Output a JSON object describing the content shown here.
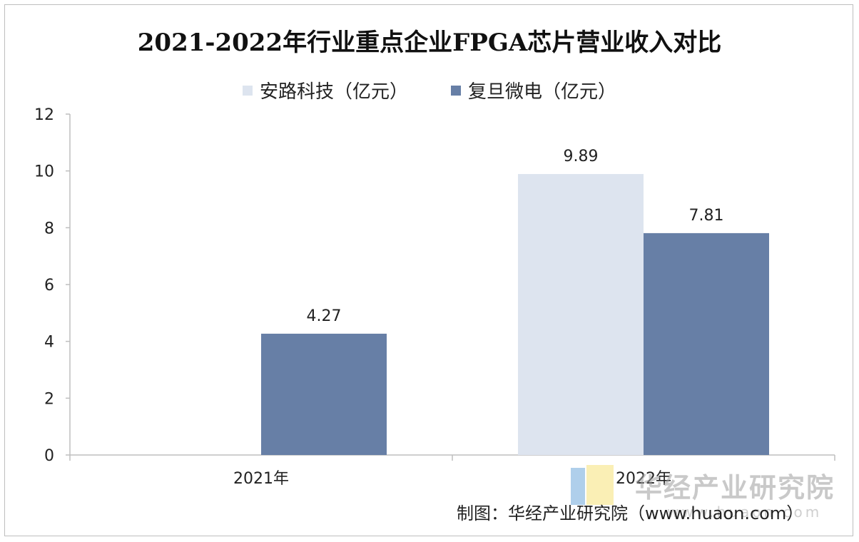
{
  "chart_data": {
    "type": "bar",
    "title": "2021-2022年行业重点企业FPGA芯片营业收入对比",
    "categories": [
      "2021年",
      "2022年"
    ],
    "series": [
      {
        "name": "安路科技（亿元）",
        "color": "#dde4ef",
        "values": [
          null,
          9.89
        ],
        "labels": [
          "",
          "9.89"
        ]
      },
      {
        "name": "复旦微电（亿元）",
        "color": "#677fa6",
        "values": [
          4.27,
          7.81
        ],
        "labels": [
          "4.27",
          "7.81"
        ]
      }
    ],
    "ylim": [
      0,
      12
    ],
    "yticks": [
      "0",
      "2",
      "4",
      "6",
      "8",
      "10",
      "12"
    ],
    "xlabel": "",
    "ylabel": "",
    "legend_position": "top-center",
    "grid": false
  },
  "source_note": "制图：华经产业研究院（www.huaon.com）",
  "watermark": {
    "text": "华经产业研究院",
    "url": "www.huaon.com"
  }
}
